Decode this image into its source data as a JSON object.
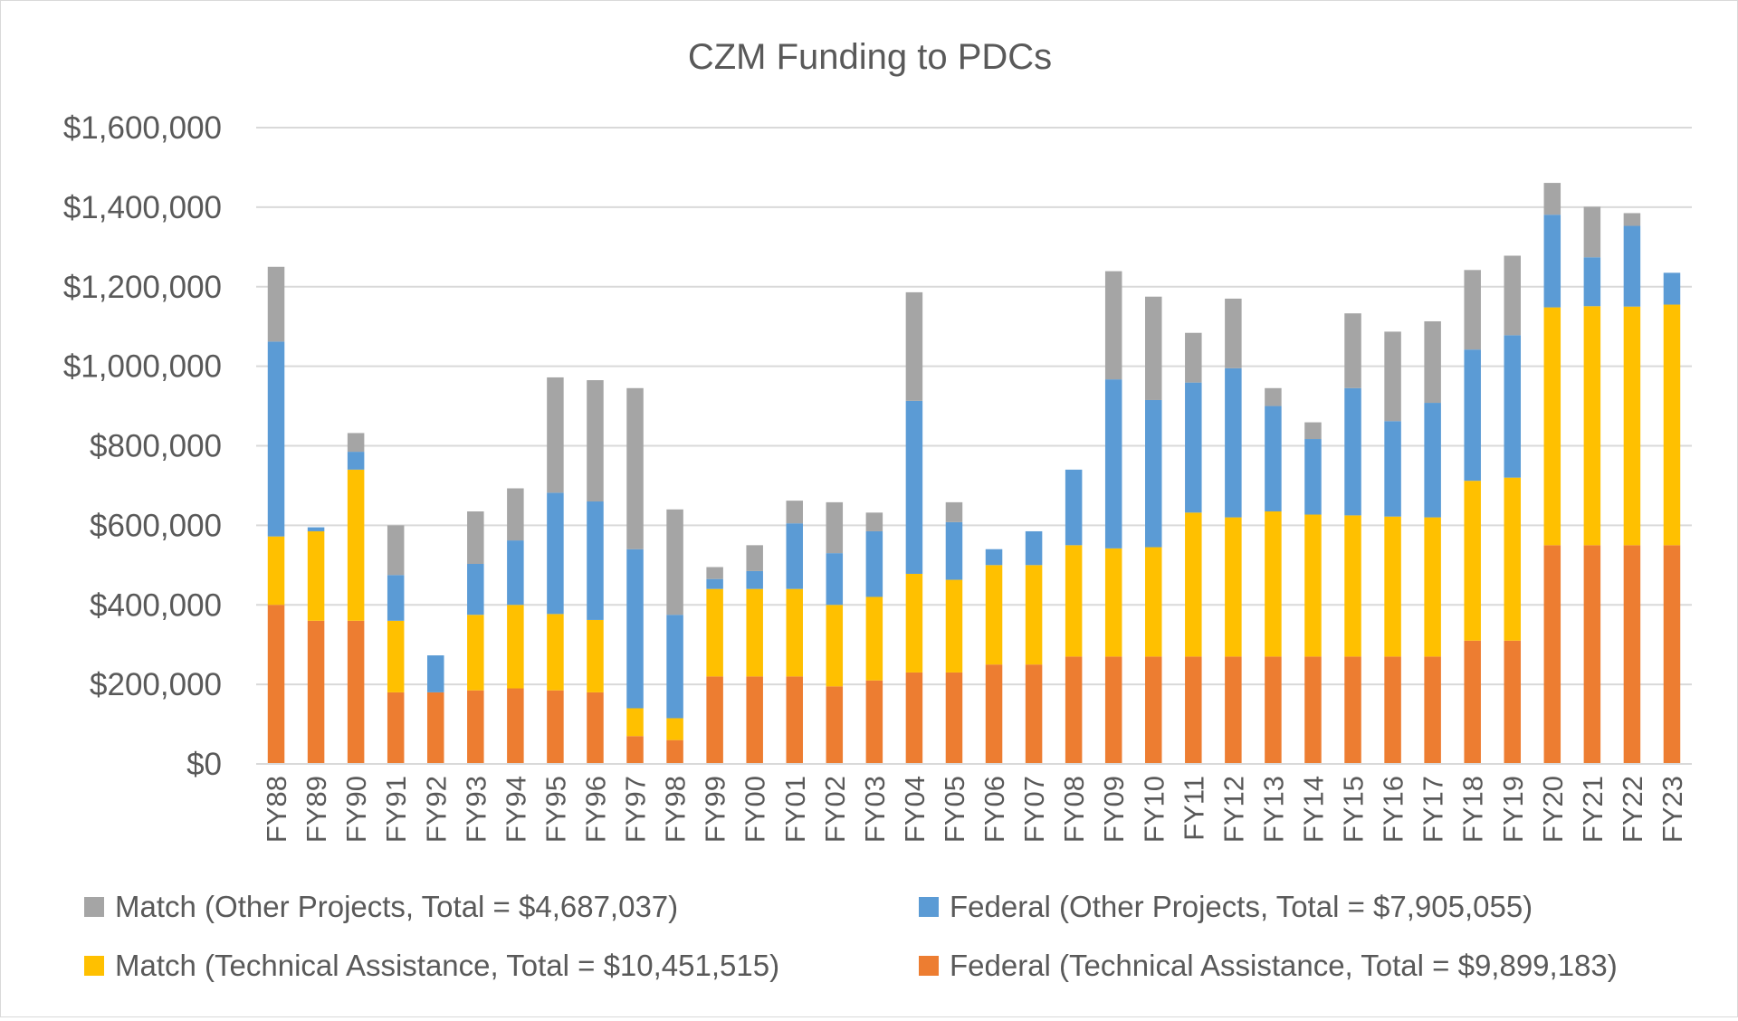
{
  "chart_data": {
    "type": "bar",
    "stacked": true,
    "title": "CZM Funding to PDCs",
    "xlabel": "",
    "ylabel": "",
    "ylim": [
      0,
      1600000
    ],
    "yticks": [
      0,
      200000,
      400000,
      600000,
      800000,
      1000000,
      1200000,
      1400000,
      1600000
    ],
    "ytick_labels": [
      "$0",
      "$200,000",
      "$400,000",
      "$600,000",
      "$800,000",
      "$1,000,000",
      "$1,200,000",
      "$1,400,000",
      "$1,600,000"
    ],
    "grid": true,
    "legend_position": "bottom",
    "categories": [
      "FY88",
      "FY89",
      "FY90",
      "FY91",
      "FY92",
      "FY93",
      "FY94",
      "FY95",
      "FY96",
      "FY97",
      "FY98",
      "FY99",
      "FY00",
      "FY01",
      "FY02",
      "FY03",
      "FY04",
      "FY05",
      "FY06",
      "FY07",
      "FY08",
      "FY09",
      "FY10",
      "FY11",
      "FY12",
      "FY13",
      "FY14",
      "FY15",
      "FY16",
      "FY17",
      "FY18",
      "FY19",
      "FY20",
      "FY21",
      "FY22",
      "FY23"
    ],
    "series": [
      {
        "name": "Federal (Technical Assistance, Total = $9,899,183)",
        "color": "#ed7d31",
        "values": [
          400000,
          360000,
          360000,
          180000,
          180000,
          185000,
          190000,
          185000,
          180000,
          70000,
          60000,
          220000,
          220000,
          220000,
          195000,
          210000,
          230000,
          230000,
          250000,
          250000,
          270000,
          270000,
          270000,
          270000,
          270000,
          270000,
          270000,
          270000,
          270000,
          270000,
          310000,
          310000,
          550000,
          550000,
          550000,
          550000
        ]
      },
      {
        "name": "Match (Technical Assistance, Total = $10,451,515)",
        "color": "#ffc000",
        "values": [
          172000,
          225000,
          380000,
          180000,
          0,
          190000,
          210000,
          192000,
          182000,
          70000,
          55000,
          220000,
          220000,
          220000,
          205000,
          210000,
          248000,
          233000,
          250000,
          250000,
          280000,
          272000,
          275000,
          362000,
          350000,
          365000,
          357000,
          355000,
          352000,
          350000,
          402000,
          410000,
          598000,
          601000,
          600000,
          605000
        ]
      },
      {
        "name": "Federal (Other Projects, Total = $7,905,055)",
        "color": "#5b9bd5",
        "values": [
          490000,
          10000,
          45000,
          115000,
          93000,
          128000,
          162000,
          305000,
          298000,
          400000,
          260000,
          25000,
          45000,
          165000,
          130000,
          165000,
          435000,
          145000,
          40000,
          85000,
          190000,
          425000,
          370000,
          327000,
          375000,
          265000,
          190000,
          320000,
          240000,
          288000,
          330000,
          358000,
          233000,
          123000,
          203000,
          80000
        ]
      },
      {
        "name": "Match (Other Projects, Total = $4,687,037)",
        "color": "#a5a5a5",
        "values": [
          188000,
          0,
          47000,
          125000,
          0,
          132000,
          131000,
          290000,
          305000,
          405000,
          265000,
          30000,
          65000,
          57000,
          128000,
          47000,
          273000,
          50000,
          0,
          0,
          0,
          272000,
          260000,
          125000,
          175000,
          45000,
          42000,
          188000,
          225000,
          205000,
          200000,
          200000,
          80000,
          127000,
          32000,
          0
        ]
      }
    ]
  },
  "legend": [
    {
      "label": "Match (Other Projects, Total = $4,687,037)",
      "color": "#a5a5a5"
    },
    {
      "label": "Federal (Other Projects, Total = $7,905,055)",
      "color": "#5b9bd5"
    },
    {
      "label": "Match (Technical Assistance, Total = $10,451,515)",
      "color": "#ffc000"
    },
    {
      "label": "Federal (Technical Assistance, Total = $9,899,183)",
      "color": "#ed7d31"
    }
  ]
}
